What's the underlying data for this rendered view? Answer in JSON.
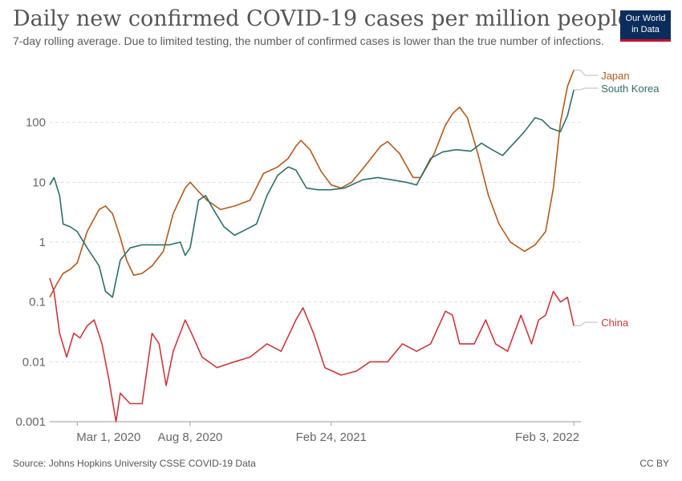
{
  "header": {
    "title": "Daily new confirmed COVID-19 cases per million people",
    "subtitle": "7-day rolling average. Due to limited testing, the number of confirmed cases is lower than the true number of infections.",
    "logo_line1": "Our World",
    "logo_line2": "in Data"
  },
  "footer": {
    "source": "Source: Johns Hopkins University CSSE COVID-19 Data",
    "license": "CC BY"
  },
  "chart_data": {
    "type": "line",
    "y_scale": "log",
    "ylim": [
      0.001,
      1000
    ],
    "y_ticks": [
      {
        "value": 0.001,
        "label": "0.001"
      },
      {
        "value": 0.01,
        "label": "0.01"
      },
      {
        "value": 0.1,
        "label": "0.1"
      },
      {
        "value": 1,
        "label": "1"
      },
      {
        "value": 10,
        "label": "10"
      },
      {
        "value": 100,
        "label": "100"
      }
    ],
    "xlim": [
      "2020-01-22",
      "2022-02-13"
    ],
    "x_ticks": [
      {
        "value": "2020-03-01",
        "label": "Mar 1, 2020"
      },
      {
        "value": "2020-08-08",
        "label": "Aug 8, 2020"
      },
      {
        "value": "2021-02-24",
        "label": "Feb 24, 2021"
      },
      {
        "value": "2022-02-03",
        "label": "Feb 3, 2022"
      }
    ],
    "grid": "horizontal dashed",
    "legend": "right, labels at line ends",
    "series": [
      {
        "name": "Japan",
        "color": "#b05a1e",
        "points": [
          [
            "2020-01-22",
            0.12
          ],
          [
            "2020-02-01",
            0.2
          ],
          [
            "2020-02-10",
            0.3
          ],
          [
            "2020-02-20",
            0.35
          ],
          [
            "2020-03-01",
            0.45
          ],
          [
            "2020-03-15",
            1.5
          ],
          [
            "2020-04-01",
            3.5
          ],
          [
            "2020-04-10",
            4.0
          ],
          [
            "2020-04-20",
            3.0
          ],
          [
            "2020-05-01",
            1.2
          ],
          [
            "2020-05-10",
            0.5
          ],
          [
            "2020-05-20",
            0.28
          ],
          [
            "2020-06-01",
            0.3
          ],
          [
            "2020-06-15",
            0.4
          ],
          [
            "2020-07-01",
            0.7
          ],
          [
            "2020-07-15",
            3.0
          ],
          [
            "2020-08-01",
            8.0
          ],
          [
            "2020-08-08",
            10.0
          ],
          [
            "2020-08-20",
            7.0
          ],
          [
            "2020-09-01",
            5.0
          ],
          [
            "2020-09-20",
            3.5
          ],
          [
            "2020-10-10",
            4.0
          ],
          [
            "2020-11-01",
            5.0
          ],
          [
            "2020-11-20",
            14.0
          ],
          [
            "2020-12-10",
            18.0
          ],
          [
            "2020-12-25",
            25.0
          ],
          [
            "2021-01-05",
            40.0
          ],
          [
            "2021-01-12",
            50.0
          ],
          [
            "2021-01-25",
            35.0
          ],
          [
            "2021-02-10",
            15.0
          ],
          [
            "2021-02-24",
            9.0
          ],
          [
            "2021-03-10",
            8.0
          ],
          [
            "2021-03-25",
            10.0
          ],
          [
            "2021-04-15",
            20.0
          ],
          [
            "2021-05-05",
            40.0
          ],
          [
            "2021-05-15",
            48.0
          ],
          [
            "2021-06-01",
            30.0
          ],
          [
            "2021-06-20",
            12.0
          ],
          [
            "2021-07-01",
            12.0
          ],
          [
            "2021-07-20",
            30.0
          ],
          [
            "2021-08-05",
            90.0
          ],
          [
            "2021-08-15",
            140.0
          ],
          [
            "2021-08-25",
            180.0
          ],
          [
            "2021-09-05",
            120.0
          ],
          [
            "2021-09-20",
            30.0
          ],
          [
            "2021-10-05",
            6.0
          ],
          [
            "2021-10-20",
            2.0
          ],
          [
            "2021-11-05",
            1.0
          ],
          [
            "2021-11-25",
            0.7
          ],
          [
            "2021-12-10",
            0.9
          ],
          [
            "2021-12-25",
            1.5
          ],
          [
            "2022-01-05",
            8.0
          ],
          [
            "2022-01-15",
            100.0
          ],
          [
            "2022-01-25",
            400.0
          ],
          [
            "2022-02-03",
            750.0
          ]
        ]
      },
      {
        "name": "South Korea",
        "color": "#2e6f63",
        "points": [
          [
            "2020-01-22",
            9.0
          ],
          [
            "2020-01-28",
            12.0
          ],
          [
            "2020-02-05",
            6.0
          ],
          [
            "2020-02-10",
            2.0
          ],
          [
            "2020-02-20",
            1.8
          ],
          [
            "2020-03-01",
            1.5
          ],
          [
            "2020-03-15",
            0.8
          ],
          [
            "2020-04-01",
            0.4
          ],
          [
            "2020-04-10",
            0.15
          ],
          [
            "2020-04-20",
            0.12
          ],
          [
            "2020-05-01",
            0.5
          ],
          [
            "2020-05-15",
            0.8
          ],
          [
            "2020-06-01",
            0.9
          ],
          [
            "2020-06-20",
            0.9
          ],
          [
            "2020-07-10",
            0.9
          ],
          [
            "2020-07-25",
            1.0
          ],
          [
            "2020-08-01",
            0.6
          ],
          [
            "2020-08-08",
            0.8
          ],
          [
            "2020-08-20",
            5.0
          ],
          [
            "2020-08-30",
            6.0
          ],
          [
            "2020-09-10",
            3.5
          ],
          [
            "2020-09-25",
            1.8
          ],
          [
            "2020-10-10",
            1.3
          ],
          [
            "2020-10-25",
            1.6
          ],
          [
            "2020-11-10",
            2.0
          ],
          [
            "2020-11-25",
            6.0
          ],
          [
            "2020-12-10",
            13.0
          ],
          [
            "2020-12-25",
            18.0
          ],
          [
            "2021-01-05",
            16.0
          ],
          [
            "2021-01-20",
            8.0
          ],
          [
            "2021-02-05",
            7.5
          ],
          [
            "2021-02-24",
            7.5
          ],
          [
            "2021-03-15",
            8.0
          ],
          [
            "2021-04-10",
            11.0
          ],
          [
            "2021-05-01",
            12.0
          ],
          [
            "2021-05-20",
            11.0
          ],
          [
            "2021-06-10",
            10.0
          ],
          [
            "2021-06-25",
            9.0
          ],
          [
            "2021-07-15",
            25.0
          ],
          [
            "2021-08-01",
            32.0
          ],
          [
            "2021-08-20",
            35.0
          ],
          [
            "2021-09-10",
            33.0
          ],
          [
            "2021-09-25",
            45.0
          ],
          [
            "2021-10-10",
            35.0
          ],
          [
            "2021-10-25",
            28.0
          ],
          [
            "2021-11-10",
            45.0
          ],
          [
            "2021-11-25",
            70.0
          ],
          [
            "2021-12-10",
            120.0
          ],
          [
            "2021-12-20",
            110.0
          ],
          [
            "2022-01-01",
            80.0
          ],
          [
            "2022-01-15",
            70.0
          ],
          [
            "2022-01-25",
            130.0
          ],
          [
            "2022-02-03",
            350.0
          ]
        ]
      },
      {
        "name": "China",
        "color": "#c8383f",
        "points": [
          [
            "2020-01-22",
            0.25
          ],
          [
            "2020-01-28",
            0.15
          ],
          [
            "2020-02-05",
            0.03
          ],
          [
            "2020-02-15",
            0.012
          ],
          [
            "2020-02-25",
            0.03
          ],
          [
            "2020-03-05",
            0.025
          ],
          [
            "2020-03-15",
            0.04
          ],
          [
            "2020-03-25",
            0.05
          ],
          [
            "2020-04-05",
            0.02
          ],
          [
            "2020-04-15",
            0.005
          ],
          [
            "2020-04-25",
            0.001
          ],
          [
            "2020-05-01",
            0.003
          ],
          [
            "2020-05-15",
            0.002
          ],
          [
            "2020-06-01",
            0.002
          ],
          [
            "2020-06-15",
            0.03
          ],
          [
            "2020-06-25",
            0.02
          ],
          [
            "2020-07-05",
            0.004
          ],
          [
            "2020-07-15",
            0.015
          ],
          [
            "2020-08-01",
            0.05
          ],
          [
            "2020-08-10",
            0.03
          ],
          [
            "2020-08-25",
            0.012
          ],
          [
            "2020-09-15",
            0.008
          ],
          [
            "2020-10-10",
            0.01
          ],
          [
            "2020-11-01",
            0.012
          ],
          [
            "2020-11-25",
            0.02
          ],
          [
            "2020-12-15",
            0.015
          ],
          [
            "2021-01-05",
            0.05
          ],
          [
            "2021-01-15",
            0.08
          ],
          [
            "2021-01-30",
            0.03
          ],
          [
            "2021-02-15",
            0.008
          ],
          [
            "2021-03-10",
            0.006
          ],
          [
            "2021-04-01",
            0.007
          ],
          [
            "2021-04-20",
            0.01
          ],
          [
            "2021-05-15",
            0.01
          ],
          [
            "2021-06-05",
            0.02
          ],
          [
            "2021-06-25",
            0.015
          ],
          [
            "2021-07-15",
            0.02
          ],
          [
            "2021-08-05",
            0.07
          ],
          [
            "2021-08-15",
            0.06
          ],
          [
            "2021-08-25",
            0.02
          ],
          [
            "2021-09-15",
            0.02
          ],
          [
            "2021-10-01",
            0.05
          ],
          [
            "2021-10-15",
            0.02
          ],
          [
            "2021-11-01",
            0.015
          ],
          [
            "2021-11-20",
            0.06
          ],
          [
            "2021-12-05",
            0.02
          ],
          [
            "2021-12-15",
            0.05
          ],
          [
            "2021-12-25",
            0.06
          ],
          [
            "2022-01-05",
            0.15
          ],
          [
            "2022-01-15",
            0.1
          ],
          [
            "2022-01-25",
            0.12
          ],
          [
            "2022-02-03",
            0.04
          ]
        ]
      }
    ]
  }
}
